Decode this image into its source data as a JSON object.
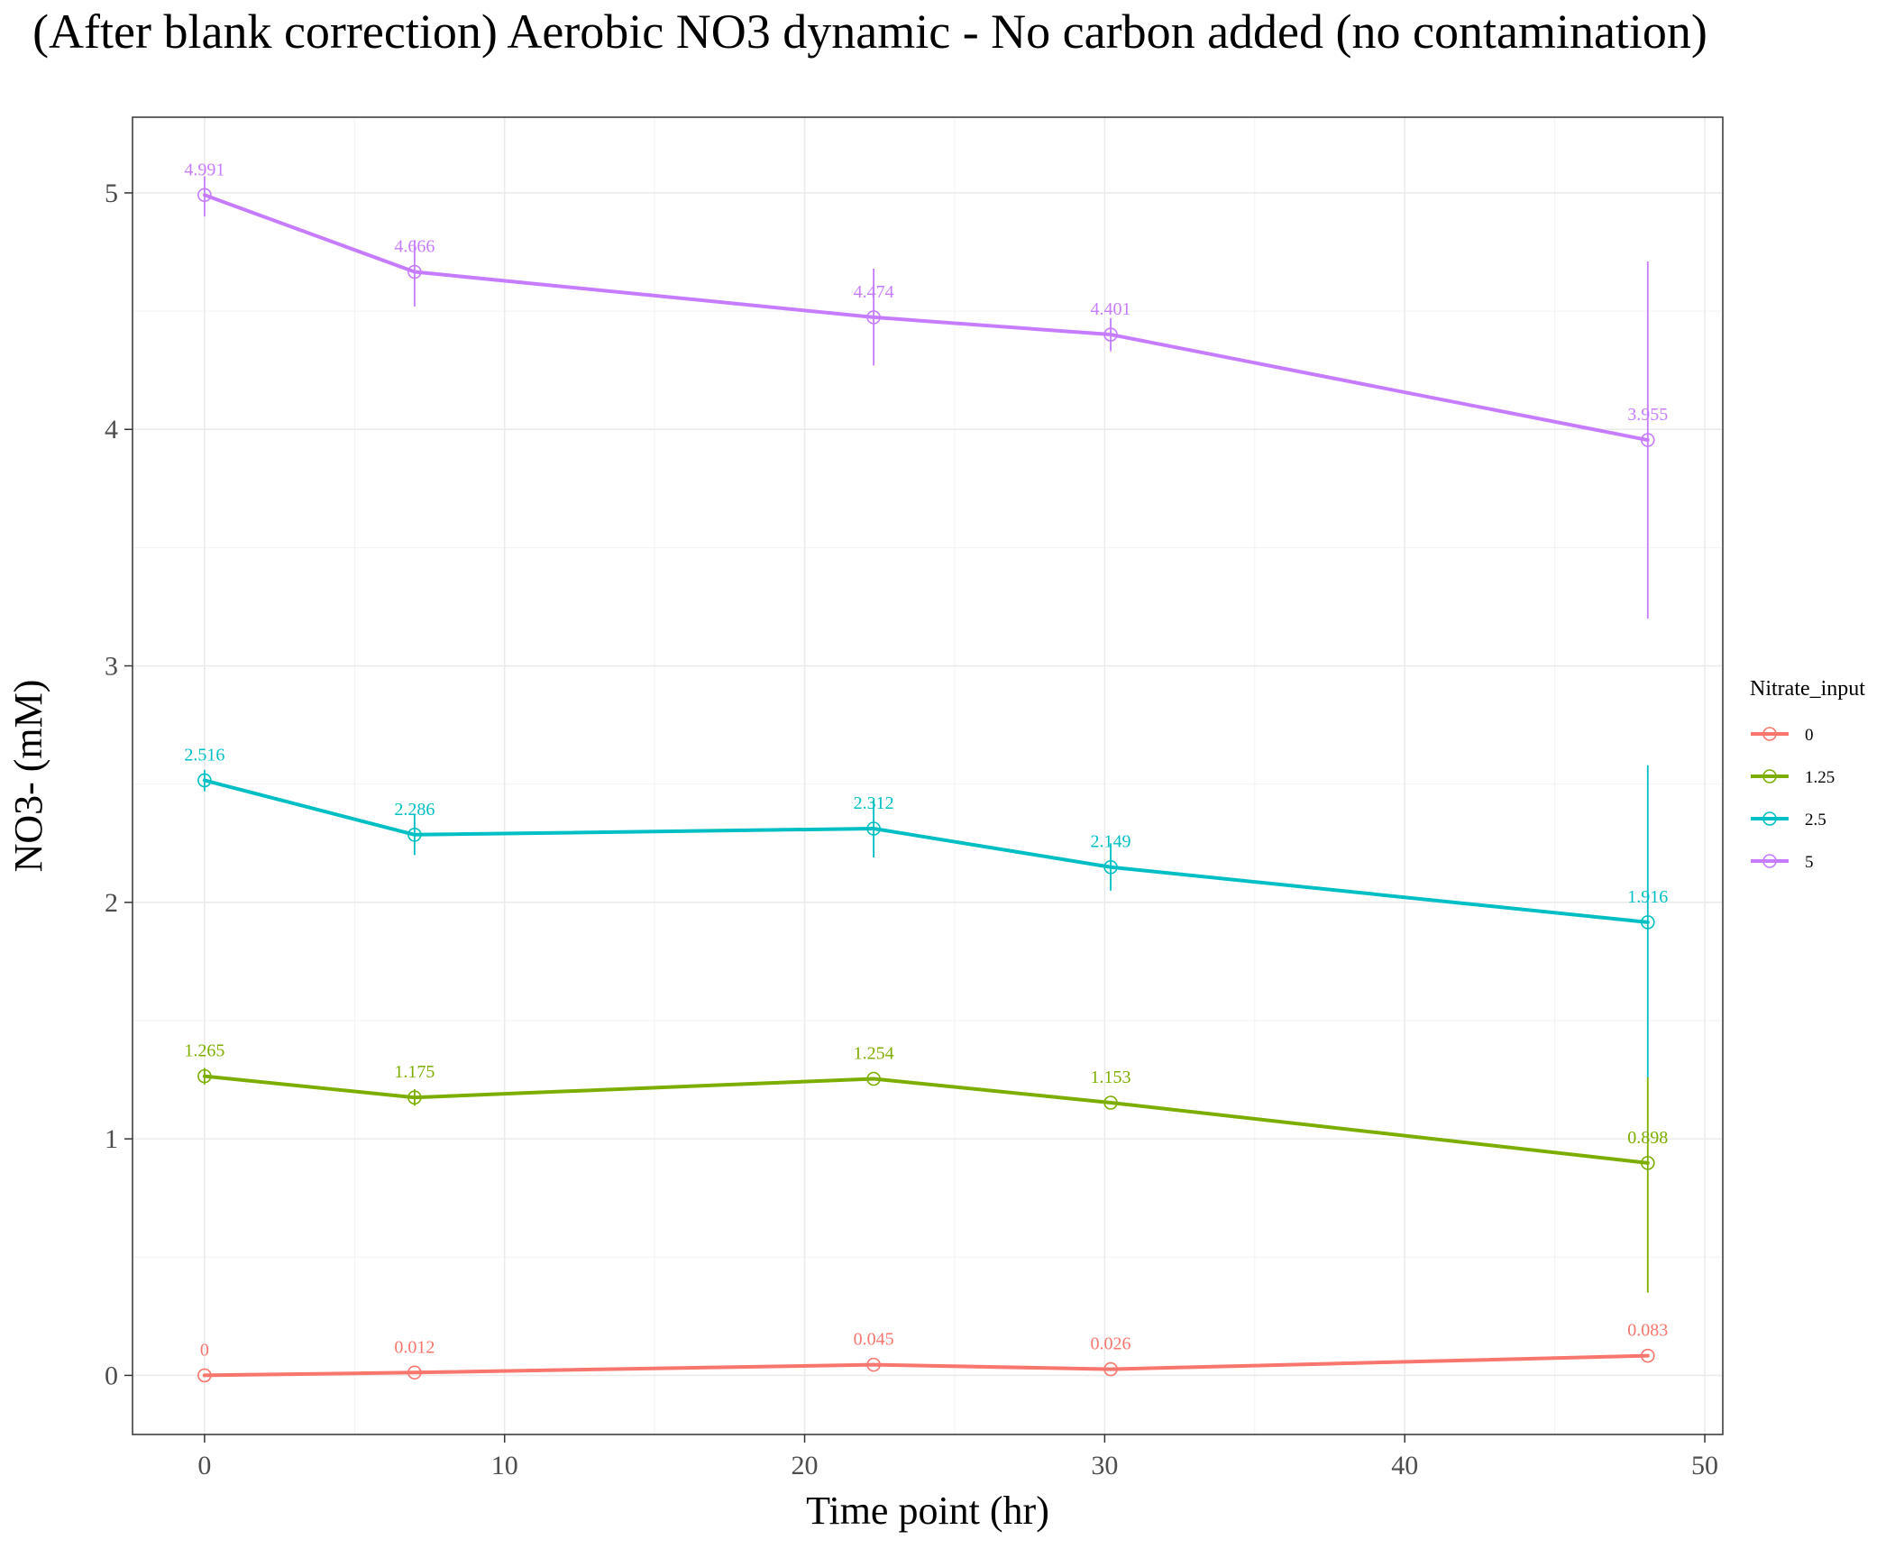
{
  "chart_data": {
    "type": "line",
    "title": "(After blank correction) Aerobic NO3 dynamic - No carbon added (no contamination)",
    "xlabel": "Time point (hr)",
    "ylabel": "NO3- (mM)",
    "xlim": [
      -2.4,
      50.6
    ],
    "ylim": [
      -0.25,
      5.32
    ],
    "x_ticks": [
      "0",
      "10",
      "20",
      "30",
      "40",
      "50"
    ],
    "y_ticks": [
      "0",
      "1",
      "2",
      "3",
      "4",
      "5"
    ],
    "grid": true,
    "legend_title": "Nitrate_input",
    "legend_position": "right",
    "series": [
      {
        "name": "0",
        "color": "#F8766D",
        "x": [
          0,
          7,
          22.3,
          30.2,
          48.1
        ],
        "y": [
          0,
          0.012,
          0.045,
          0.026,
          0.083
        ],
        "labels": [
          "0",
          "0.012",
          "0.045",
          "0.026",
          "0.083"
        ],
        "err_low": [
          0,
          0.012,
          0.045,
          0.026,
          0.083
        ],
        "err_high": [
          0,
          0.012,
          0.045,
          0.026,
          0.083
        ]
      },
      {
        "name": "1.25",
        "color": "#7CAE00",
        "x": [
          0,
          7,
          22.3,
          30.2,
          48.1
        ],
        "y": [
          1.265,
          1.175,
          1.254,
          1.153,
          0.898
        ],
        "labels": [
          "1.265",
          "1.175",
          "1.254",
          "1.153",
          "0.898"
        ],
        "err_low": [
          1.23,
          1.14,
          1.254,
          1.153,
          0.35
        ],
        "err_high": [
          1.3,
          1.21,
          1.254,
          1.153,
          1.26
        ]
      },
      {
        "name": "2.5",
        "color": "#00BFC4",
        "x": [
          0,
          7,
          22.3,
          30.2,
          48.1
        ],
        "y": [
          2.516,
          2.286,
          2.312,
          2.149,
          1.916
        ],
        "labels": [
          "2.516",
          "2.286",
          "2.312",
          "2.149",
          "1.916"
        ],
        "err_low": [
          2.47,
          2.2,
          2.19,
          2.05,
          1.26
        ],
        "err_high": [
          2.56,
          2.37,
          2.43,
          2.25,
          2.58
        ]
      },
      {
        "name": "5",
        "color": "#C77CFF",
        "x": [
          0,
          7,
          22.3,
          30.2,
          48.1
        ],
        "y": [
          4.991,
          4.666,
          4.474,
          4.401,
          3.955
        ],
        "labels": [
          "4.991",
          "4.666",
          "4.474",
          "4.401",
          "3.955"
        ],
        "err_low": [
          4.9,
          4.52,
          4.27,
          4.33,
          3.2
        ],
        "err_high": [
          5.07,
          4.8,
          4.68,
          4.47,
          4.71
        ]
      }
    ]
  }
}
